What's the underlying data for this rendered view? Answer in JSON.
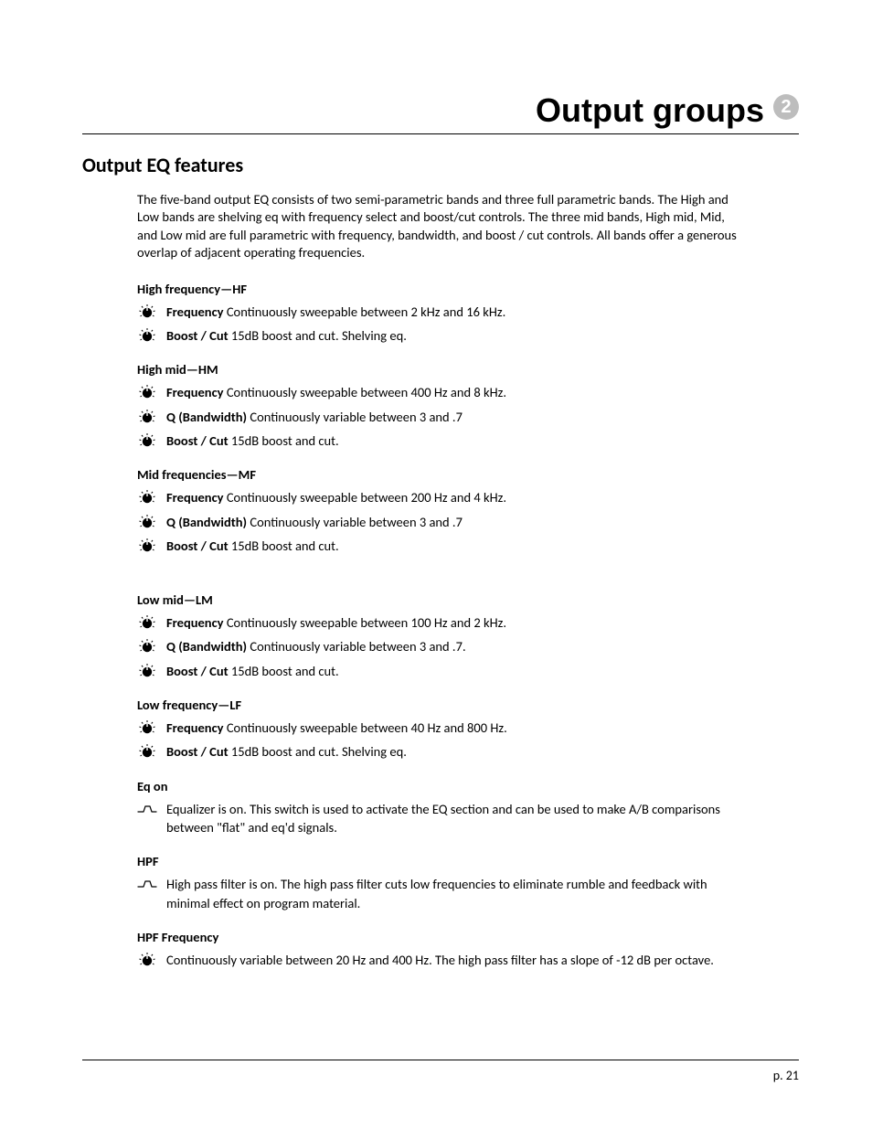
{
  "chapter": {
    "title": "Output groups",
    "number": "2"
  },
  "section": {
    "title": "Output EQ features"
  },
  "intro": "The five-band output EQ consists of two semi-parametric bands and three full parametric bands. The High and Low bands are shelving eq with frequency select and boost/cut controls. The three mid bands, High mid, Mid, and Low mid are full parametric with frequency, bandwidth, and boost / cut controls.  All bands offer a generous overlap of adjacent operating frequencies.",
  "bands": [
    {
      "key": "hf",
      "heading": "High frequency—HF",
      "params": [
        {
          "icon": "knob",
          "label": "Frequency",
          "desc": "Continuously sweepable between 2 kHz and 16 kHz."
        },
        {
          "icon": "knob",
          "label": "Boost / Cut",
          "desc": "15dB boost and cut. Shelving eq."
        }
      ]
    },
    {
      "key": "hm",
      "heading": "High mid—HM",
      "params": [
        {
          "icon": "knob",
          "label": "Frequency",
          "desc": "Continuously sweepable between 400 Hz and 8 kHz."
        },
        {
          "icon": "knob",
          "label": "Q (Bandwidth)",
          "desc": "Continuously variable between 3 and .7"
        },
        {
          "icon": "knob",
          "label": "Boost / Cut",
          "desc": "15dB boost and cut."
        }
      ]
    },
    {
      "key": "mf",
      "heading": "Mid frequencies—MF",
      "params": [
        {
          "icon": "knob",
          "label": "Frequency",
          "desc": "Continuously sweepable between 200 Hz and 4 kHz."
        },
        {
          "icon": "knob",
          "label": "Q (Bandwidth)",
          "desc": "Continuously variable between 3 and .7"
        },
        {
          "icon": "knob",
          "label": "Boost / Cut",
          "desc": "15dB boost and cut."
        }
      ]
    },
    {
      "key": "lm",
      "heading": "Low mid—LM",
      "extra_gap": true,
      "params": [
        {
          "icon": "knob",
          "label": "Frequency",
          "desc": "Continuously sweepable between 100 Hz and 2 kHz."
        },
        {
          "icon": "knob",
          "label": "Q (Bandwidth)",
          "desc": "Continuously variable between 3 and .7."
        },
        {
          "icon": "knob",
          "label": "Boost / Cut",
          "desc": "15dB boost and cut."
        }
      ]
    },
    {
      "key": "lf",
      "heading": "Low frequency—LF",
      "params": [
        {
          "icon": "knob",
          "label": "Frequency",
          "desc": "Continuously sweepable between 40 Hz and 800 Hz."
        },
        {
          "icon": "knob",
          "label": "Boost / Cut",
          "desc": "15dB boost and cut. Shelving eq."
        }
      ]
    }
  ],
  "switches": [
    {
      "key": "eqon",
      "heading": "Eq on",
      "icon": "switch",
      "desc": "Equalizer is on.  This switch is used to activate the EQ section and can be used to make A/B comparisons between \"flat\" and eq'd signals."
    },
    {
      "key": "hpf",
      "heading": "HPF",
      "icon": "switch",
      "desc": "High pass filter is on. The high pass filter cuts low frequencies to eliminate rumble and feedback with minimal effect on program material."
    }
  ],
  "hpf_freq": {
    "heading": "HPF Frequency",
    "icon": "knob",
    "desc": "Continuously variable between 20 Hz and 400 Hz. The high pass filter has a slope of -12 dB per octave."
  },
  "page_number": "p. 21",
  "colors": {
    "text": "#000000",
    "badge_bg": "#bdbdbd",
    "badge_fg": "#ffffff",
    "rule": "#000000",
    "background": "#ffffff"
  }
}
